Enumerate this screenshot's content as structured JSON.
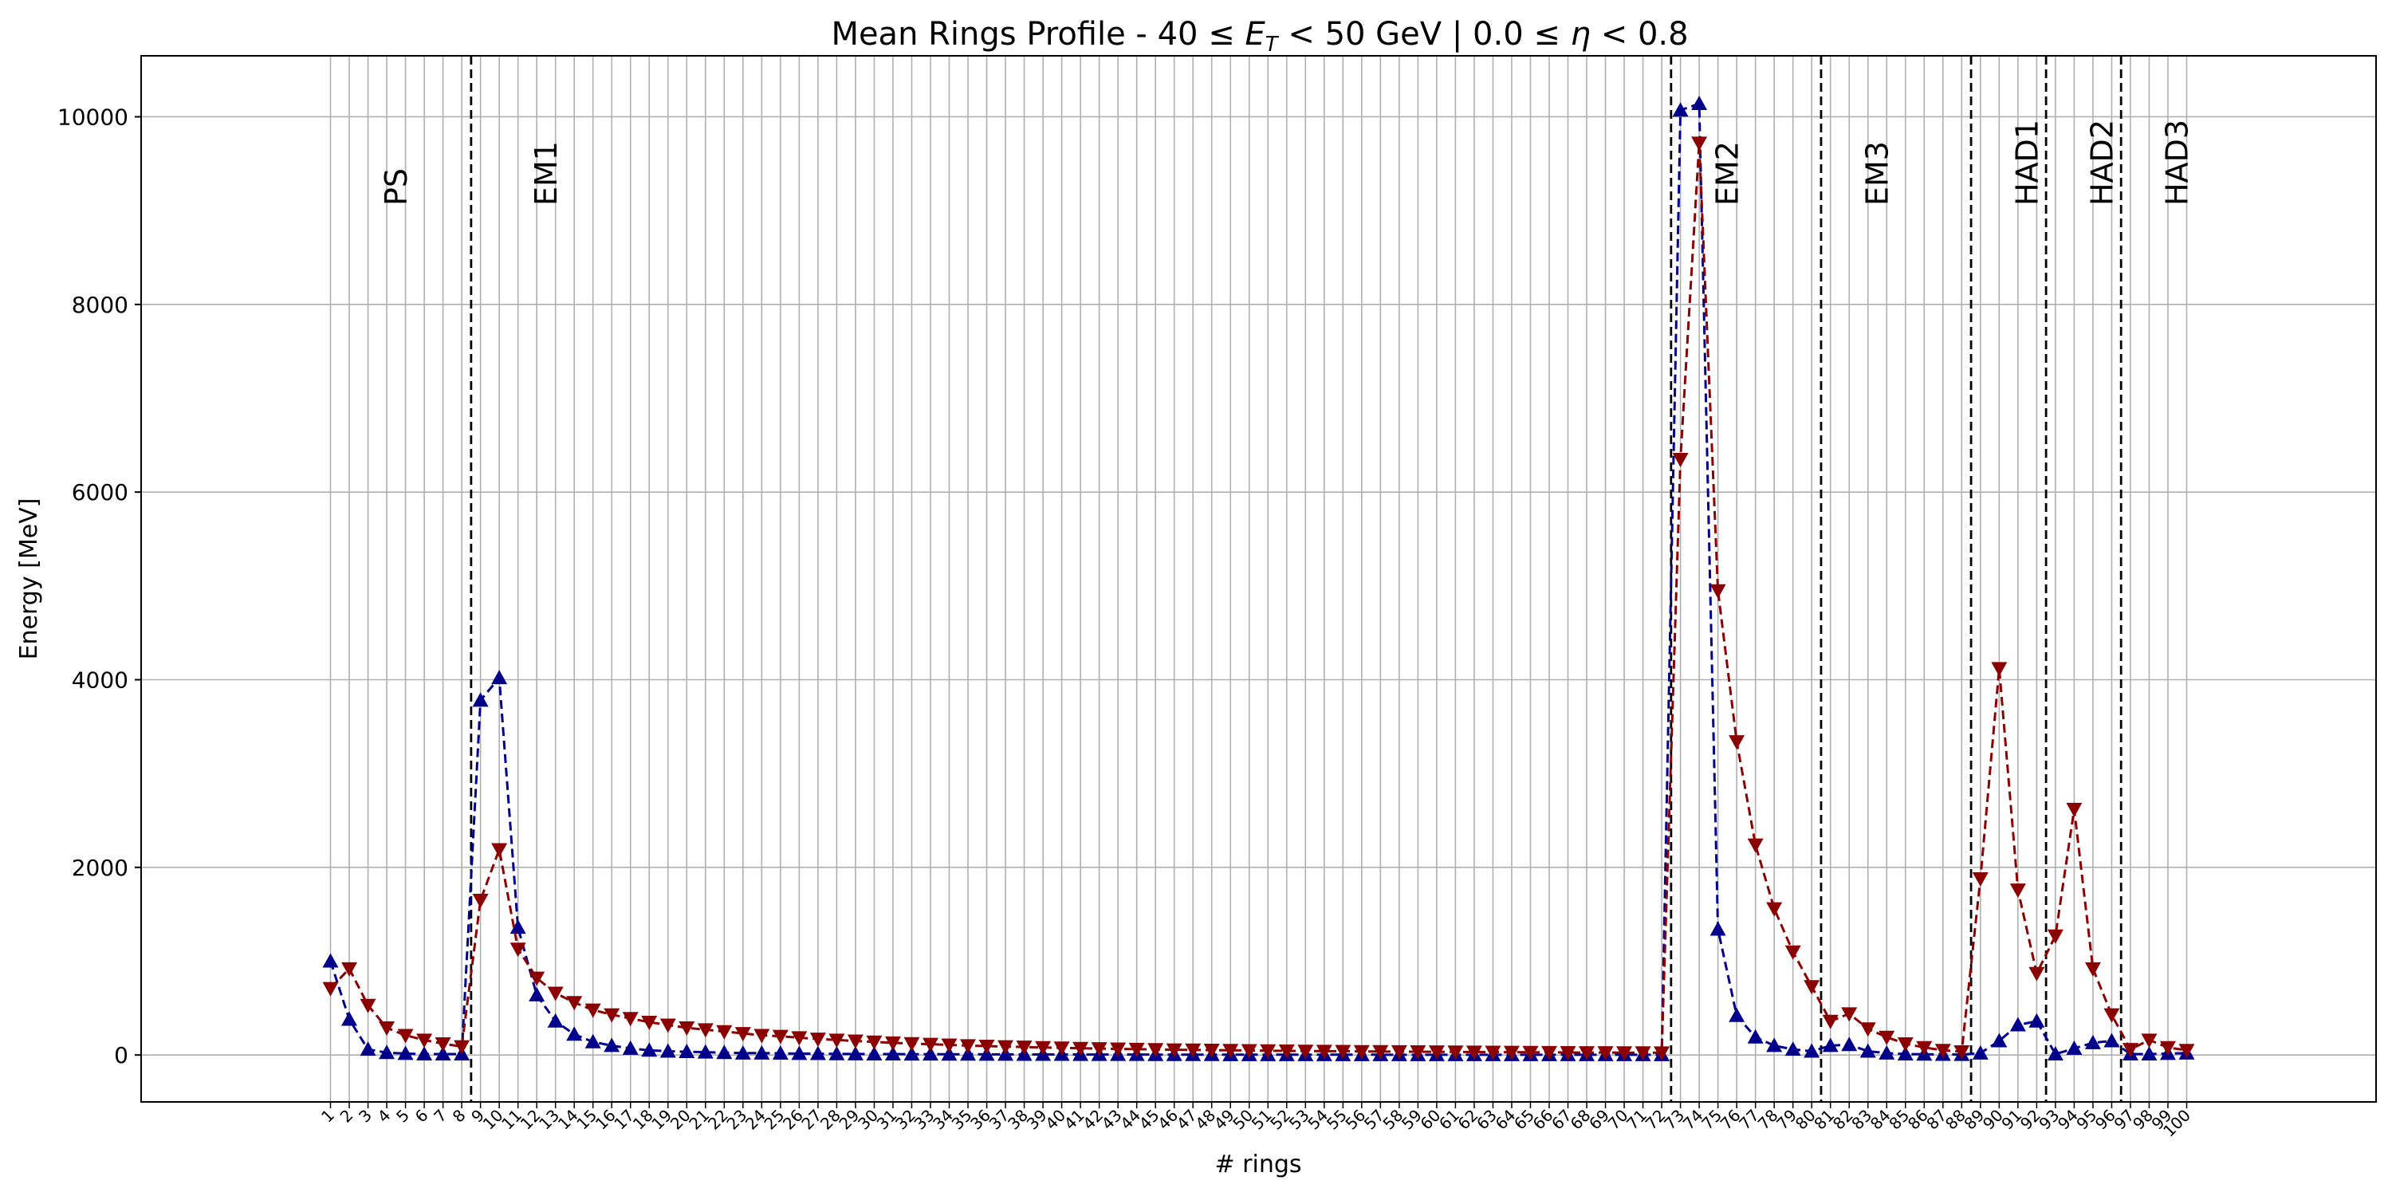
{
  "chart_data": {
    "type": "line",
    "title": "Mean Rings Profile - 40 ≤ E_T < 50 GeV | 0.0 ≤ η < 0.8",
    "title_parts": {
      "prefix": "Mean Rings Profile - 40",
      "le1": "≤",
      "e": "E",
      "t_sub": "T",
      "lt1": "<",
      "mid": "50 GeV | 0.0",
      "le2": "≤",
      "eta": "η",
      "lt2": "<",
      "suffix": "0.8"
    },
    "xlabel": "# rings",
    "ylabel": "Energy [MeV]",
    "xlim": [
      -9.1,
      110.1
    ],
    "ylim": [
      -500,
      10650
    ],
    "yticks": [
      0,
      2000,
      4000,
      6000,
      8000,
      10000
    ],
    "grid": true,
    "line_style": "dashed",
    "dividers": [
      8.5,
      72.5,
      80.5,
      88.5,
      92.5,
      96.5
    ],
    "regions": [
      {
        "label": "PS",
        "x": 4.5
      },
      {
        "label": "EM1",
        "x": 12.5
      },
      {
        "label": "EM2",
        "x": 75.5
      },
      {
        "label": "EM3",
        "x": 83.5
      },
      {
        "label": "HAD1",
        "x": 91.5
      },
      {
        "label": "HAD2",
        "x": 95.5
      },
      {
        "label": "HAD3",
        "x": 99.5
      }
    ],
    "series": [
      {
        "color": "#00008b",
        "marker": "triangle-up",
        "values": [
          1000,
          380,
          60,
          25,
          15,
          10,
          10,
          10,
          3780,
          4020,
          1360,
          640,
          360,
          220,
          140,
          100,
          70,
          50,
          40,
          35,
          30,
          25,
          20,
          20,
          18,
          15,
          14,
          12,
          11,
          10,
          10,
          9,
          9,
          8,
          8,
          7,
          7,
          6,
          6,
          6,
          5,
          5,
          5,
          5,
          4,
          4,
          4,
          4,
          3,
          3,
          3,
          3,
          3,
          3,
          3,
          3,
          3,
          2,
          2,
          2,
          2,
          2,
          2,
          2,
          2,
          2,
          2,
          2,
          2,
          2,
          2,
          2,
          10070,
          10140,
          1340,
          420,
          190,
          100,
          60,
          40,
          100,
          110,
          40,
          20,
          10,
          8,
          6,
          5,
          20,
          150,
          320,
          360,
          10,
          70,
          130,
          150,
          10,
          10,
          15,
          20
        ]
      },
      {
        "color": "#8b0000",
        "marker": "triangle-down",
        "values": [
          710,
          920,
          530,
          290,
          210,
          160,
          120,
          90,
          1650,
          2190,
          1130,
          820,
          660,
          560,
          480,
          430,
          390,
          350,
          320,
          290,
          270,
          250,
          230,
          210,
          200,
          185,
          170,
          160,
          150,
          140,
          130,
          122,
          115,
          108,
          100,
          95,
          90,
          85,
          80,
          76,
          72,
          68,
          65,
          62,
          59,
          56,
          54,
          52,
          50,
          48,
          46,
          44,
          42,
          41,
          40,
          38,
          37,
          36,
          35,
          34,
          33,
          32,
          31,
          30,
          29,
          28,
          27,
          26,
          26,
          25,
          25,
          24,
          6350,
          9720,
          4950,
          3340,
          2240,
          1560,
          1100,
          730,
          360,
          440,
          280,
          190,
          120,
          80,
          50,
          35,
          1880,
          4120,
          1760,
          870,
          1270,
          2620,
          920,
          430,
          60,
          160,
          80,
          50
        ]
      }
    ]
  }
}
